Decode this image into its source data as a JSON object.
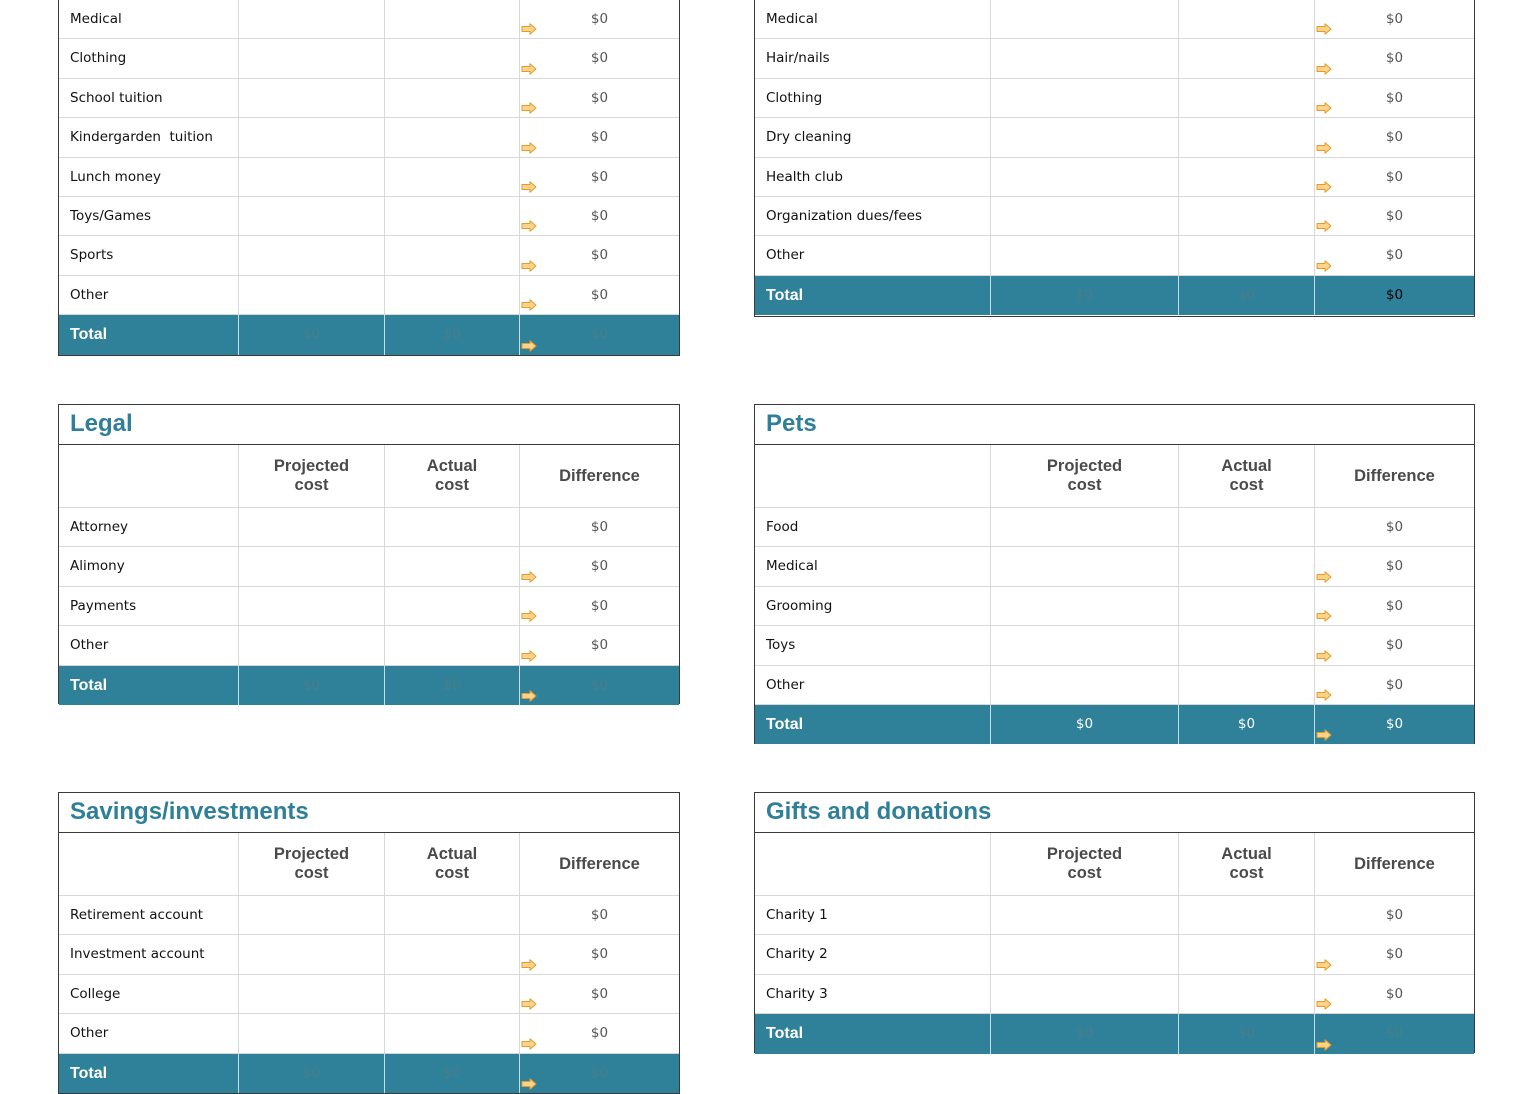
{
  "colors": {
    "title": "#2f7f98",
    "total_row": "#2f8199",
    "arrow_fill": "#fbd38a",
    "arrow_stroke": "#e59b2b"
  },
  "icons": {
    "difference_indicator": "arrow-right-icon"
  },
  "tables": [
    {
      "title": "",
      "rows": [
        {
          "label": "Medical",
          "projected": "",
          "actual": "",
          "difference": "$0",
          "arrow": true
        },
        {
          "label": "Clothing",
          "projected": "",
          "actual": "",
          "difference": "$0",
          "arrow": true
        },
        {
          "label": "School tuition",
          "projected": "",
          "actual": "",
          "difference": "$0",
          "arrow": true
        },
        {
          "label": "Kindergarden  tuition",
          "projected": "",
          "actual": "",
          "difference": "$0",
          "arrow": true
        },
        {
          "label": "Lunch money",
          "projected": "",
          "actual": "",
          "difference": "$0",
          "arrow": true
        },
        {
          "label": "Toys/Games",
          "projected": "",
          "actual": "",
          "difference": "$0",
          "arrow": true
        },
        {
          "label": "Sports",
          "projected": "",
          "actual": "",
          "difference": "$0",
          "arrow": true
        },
        {
          "label": "Other",
          "projected": "",
          "actual": "",
          "difference": "$0",
          "arrow": true
        }
      ],
      "total": {
        "label": "Total",
        "projected": "$0",
        "actual": "$0",
        "difference": "$0",
        "arrow": true
      }
    },
    {
      "title": "",
      "rows": [
        {
          "label": "Medical",
          "projected": "",
          "actual": "",
          "difference": "$0",
          "arrow": true
        },
        {
          "label": "Hair/nails",
          "projected": "",
          "actual": "",
          "difference": "$0",
          "arrow": true
        },
        {
          "label": "Clothing",
          "projected": "",
          "actual": "",
          "difference": "$0",
          "arrow": true
        },
        {
          "label": "Dry cleaning",
          "projected": "",
          "actual": "",
          "difference": "$0",
          "arrow": true
        },
        {
          "label": "Health club",
          "projected": "",
          "actual": "",
          "difference": "$0",
          "arrow": true
        },
        {
          "label": "Organization dues/fees",
          "projected": "",
          "actual": "",
          "difference": "$0",
          "arrow": true
        },
        {
          "label": "Other",
          "projected": "",
          "actual": "",
          "difference": "$0",
          "arrow": true
        }
      ],
      "total": {
        "label": "Total",
        "projected": "$0",
        "actual": "$0",
        "difference": "$0",
        "arrow": false
      }
    },
    {
      "title": "Legal",
      "headers": {
        "projected": "Projected\ncost",
        "actual": "Actual\ncost",
        "difference": "Difference"
      },
      "rows": [
        {
          "label": "Attorney",
          "projected": "",
          "actual": "",
          "difference": "$0",
          "arrow": false
        },
        {
          "label": "Alimony",
          "projected": "",
          "actual": "",
          "difference": "$0",
          "arrow": true
        },
        {
          "label": "Payments",
          "projected": "",
          "actual": "",
          "difference": "$0",
          "arrow": true
        },
        {
          "label": "Other",
          "projected": "",
          "actual": "",
          "difference": "$0",
          "arrow": true
        }
      ],
      "total": {
        "label": "Total",
        "projected": "$0",
        "actual": "$0",
        "difference": "$0",
        "arrow": true
      }
    },
    {
      "title": "Pets",
      "headers": {
        "projected": "Projected\ncost",
        "actual": "Actual\ncost",
        "difference": "Difference"
      },
      "rows": [
        {
          "label": "Food",
          "projected": "",
          "actual": "",
          "difference": "$0",
          "arrow": false
        },
        {
          "label": "Medical",
          "projected": "",
          "actual": "",
          "difference": "$0",
          "arrow": true
        },
        {
          "label": "Grooming",
          "projected": "",
          "actual": "",
          "difference": "$0",
          "arrow": true
        },
        {
          "label": "Toys",
          "projected": "",
          "actual": "",
          "difference": "$0",
          "arrow": true
        },
        {
          "label": "Other",
          "projected": "",
          "actual": "",
          "difference": "$0",
          "arrow": true
        }
      ],
      "total": {
        "label": "Total",
        "projected": "$0",
        "actual": "$0",
        "difference": "$0",
        "arrow": true
      }
    },
    {
      "title": "Savings/investments",
      "headers": {
        "projected": "Projected\ncost",
        "actual": "Actual\ncost",
        "difference": "Difference"
      },
      "rows": [
        {
          "label": "Retirement account",
          "projected": "",
          "actual": "",
          "difference": "$0",
          "arrow": false
        },
        {
          "label": "Investment account",
          "projected": "",
          "actual": "",
          "difference": "$0",
          "arrow": true
        },
        {
          "label": "College",
          "projected": "",
          "actual": "",
          "difference": "$0",
          "arrow": true
        },
        {
          "label": "Other",
          "projected": "",
          "actual": "",
          "difference": "$0",
          "arrow": true
        }
      ],
      "total": {
        "label": "Total",
        "projected": "$0",
        "actual": "$0",
        "difference": "$0",
        "arrow": true
      }
    },
    {
      "title": "Gifts and donations",
      "headers": {
        "projected": "Projected\ncost",
        "actual": "Actual\ncost",
        "difference": "Difference"
      },
      "rows": [
        {
          "label": "Charity 1",
          "projected": "",
          "actual": "",
          "difference": "$0",
          "arrow": false
        },
        {
          "label": "Charity 2",
          "projected": "",
          "actual": "",
          "difference": "$0",
          "arrow": true
        },
        {
          "label": "Charity 3",
          "projected": "",
          "actual": "",
          "difference": "$0",
          "arrow": true
        }
      ],
      "total": {
        "label": "Total",
        "projected": "$0",
        "actual": "$0",
        "difference": "$0",
        "arrow": true
      }
    }
  ]
}
